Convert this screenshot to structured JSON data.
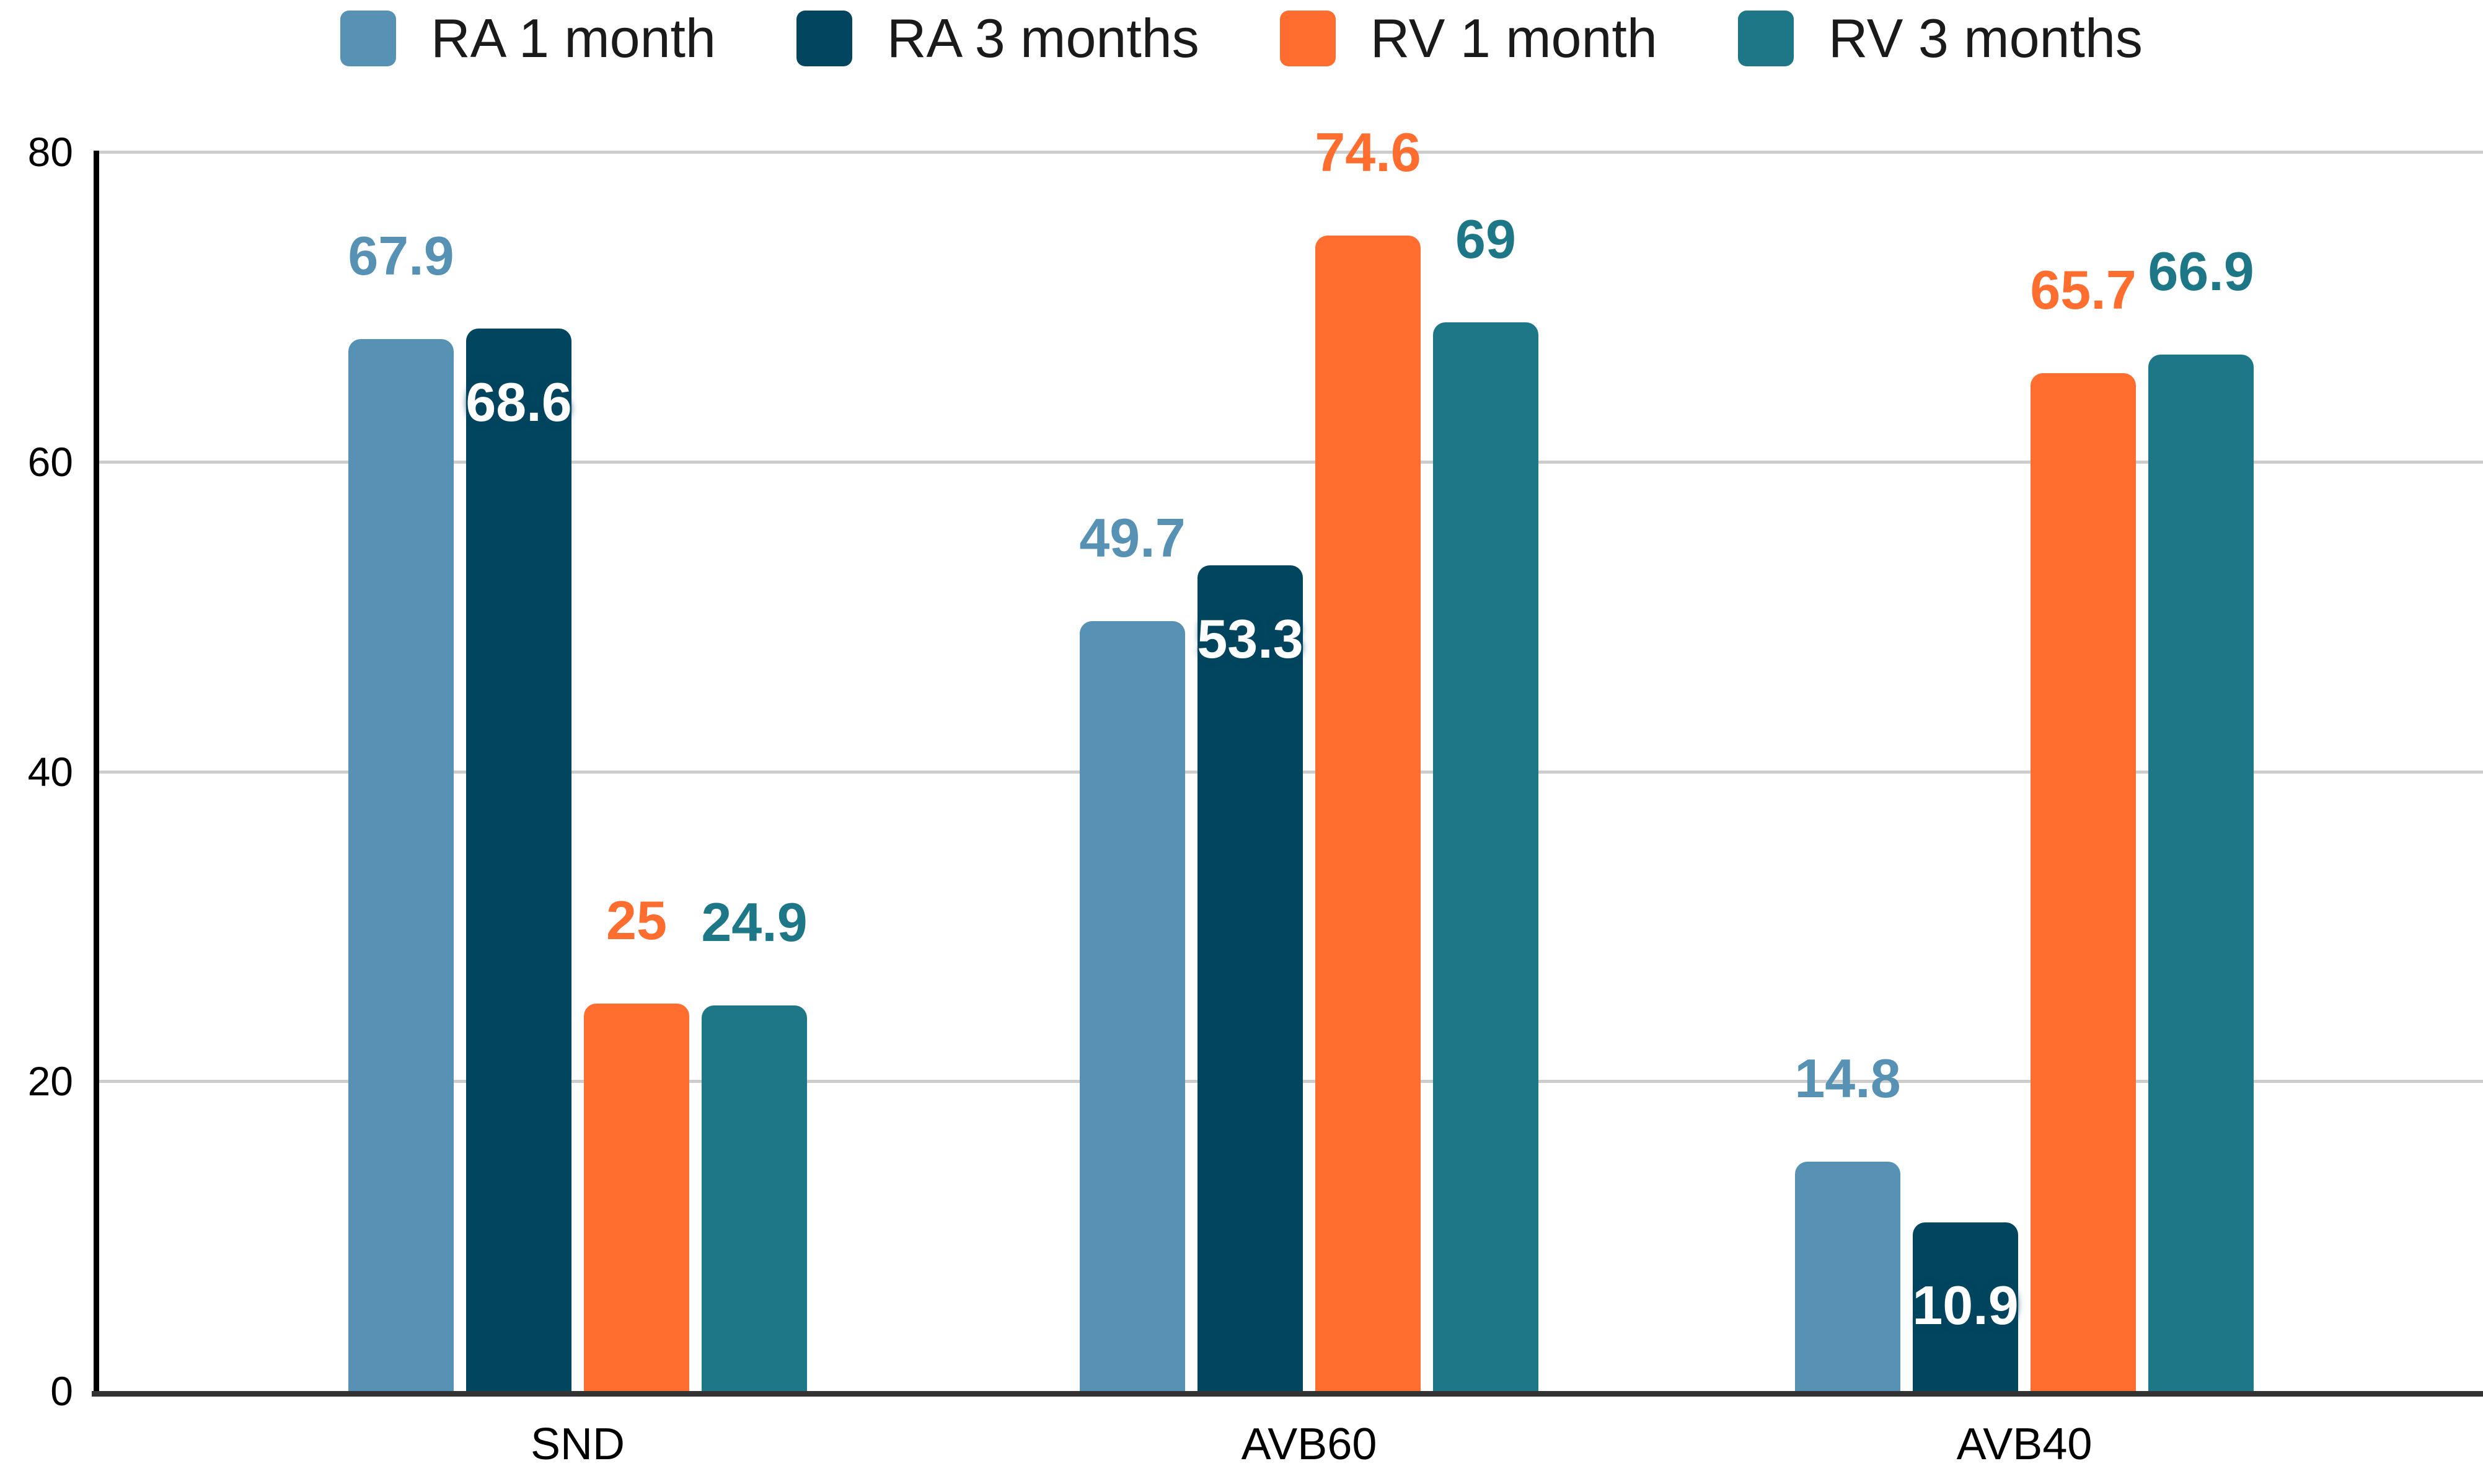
{
  "chart_data": {
    "type": "bar",
    "title": "",
    "categories": [
      "SND",
      "AVB60",
      "AVB40"
    ],
    "series": [
      {
        "name": "RA 1 month",
        "color": "#5792b4",
        "values": [
          67.9,
          49.7,
          14.8
        ],
        "label_position": "outside",
        "label_color": "#5792b4"
      },
      {
        "name": "RA 3 months",
        "color": "#02455f",
        "values": [
          68.6,
          53.3,
          10.9
        ],
        "label_position": "inside",
        "label_color": "#ffffff"
      },
      {
        "name": "RV 1 month",
        "color": "#ff6d2f",
        "values": [
          25,
          74.6,
          65.7
        ],
        "label_position": "outside",
        "label_color": "#ff6d2f"
      },
      {
        "name": "RV 3 months",
        "color": "#1d7787",
        "values": [
          24.9,
          69,
          66.9
        ],
        "label_position": "outside",
        "label_color": "#1d7787"
      }
    ],
    "y_axis": {
      "min": 0,
      "max": 80,
      "tick_step": 20,
      "ticks": [
        "0",
        "20",
        "40",
        "60",
        "80"
      ]
    },
    "x_axis_labels": [
      "SND",
      "AVB60",
      "AVB40"
    ],
    "grid": true,
    "legend_position": "top",
    "data_labels_shown": true,
    "colors": {
      "background": "#ffffff",
      "gridline": "#cccccc",
      "baseline": "#333333",
      "axis_line": "#000000",
      "text": "#1a1a1a"
    }
  }
}
